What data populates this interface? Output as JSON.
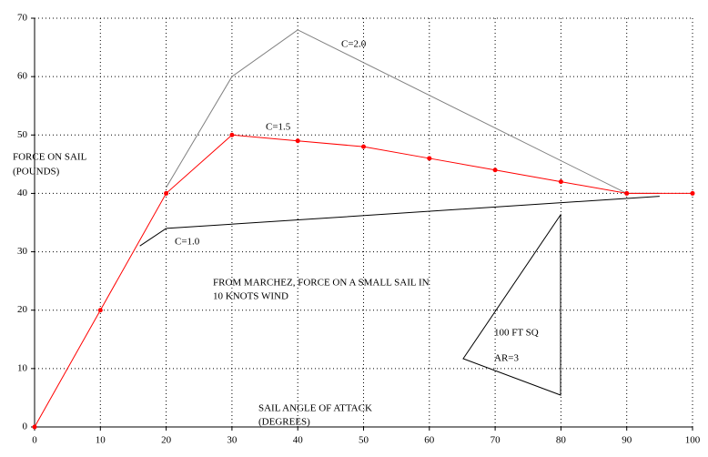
{
  "chart_data": {
    "type": "line",
    "xlabel": [
      "SAIL ANGLE OF ATTACK",
      "(DEGREES)"
    ],
    "ylabel": [
      "FORCE ON SAIL",
      "(POUNDS)"
    ],
    "annotations": [
      "FROM MARCHEZ, FORCE ON A SMALL SAIL IN",
      "10 KNOTS WIND",
      "100 FT SQ",
      "AR=3"
    ],
    "xlim": [
      0,
      100
    ],
    "xticks": [
      0,
      10,
      20,
      30,
      40,
      50,
      60,
      70,
      80,
      90,
      100
    ],
    "ylim": [
      0,
      70
    ],
    "yticks": [
      0,
      10,
      20,
      30,
      40,
      50,
      60,
      70
    ],
    "grid": true,
    "series": [
      {
        "name": "C=2.0",
        "color": "#808080",
        "markers": false,
        "x": [
          20,
          30,
          40,
          90,
          95
        ],
        "values": [
          41,
          60,
          68,
          40,
          40
        ]
      },
      {
        "name": "C=1.5",
        "color": "#ff0000",
        "markers": true,
        "x": [
          0,
          10,
          20,
          30,
          40,
          50,
          60,
          70,
          80,
          90,
          100
        ],
        "values": [
          0,
          20,
          40,
          50,
          49,
          48,
          46,
          44,
          42,
          40,
          40
        ]
      },
      {
        "name": "C=1.0",
        "color": "#000000",
        "markers": false,
        "x": [
          16,
          20,
          95
        ],
        "values": [
          31,
          34,
          39.5
        ]
      }
    ]
  }
}
